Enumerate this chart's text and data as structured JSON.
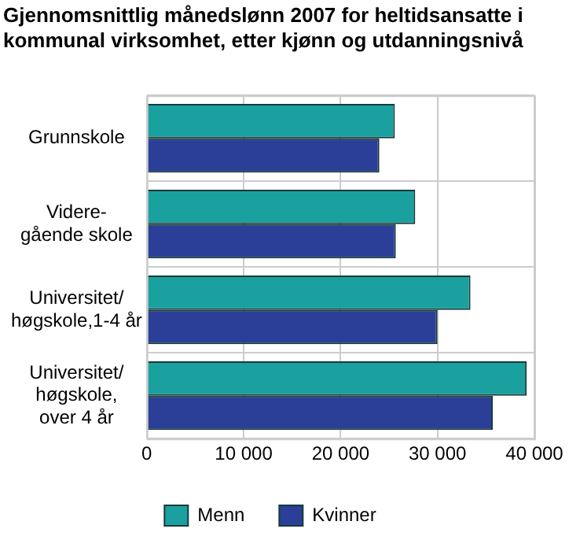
{
  "chart_data": {
    "type": "bar",
    "orientation": "horizontal",
    "title": "Gjennomsnittlig månedslønn 2007 for heltidsansatte i kommunal virksomhet, etter kjønn og utdanningsnivå",
    "categories": [
      "Grunnskole",
      "Videre-\ngående skole",
      "Universitet/\nhøgskole,1-4 år",
      "Universitet/\nhøgskole,\nover 4 år"
    ],
    "series": [
      {
        "name": "Menn",
        "color": "#1aa09e",
        "values": [
          25600,
          27700,
          33400,
          39200
        ]
      },
      {
        "name": "Kvinner",
        "color": "#2b3f98",
        "values": [
          24000,
          25700,
          30000,
          35700
        ]
      }
    ],
    "xlim": [
      0,
      40000
    ],
    "xticks": [
      {
        "value": 0,
        "label": "0"
      },
      {
        "value": 10000,
        "label": "10 000"
      },
      {
        "value": 20000,
        "label": "20 000"
      },
      {
        "value": 30000,
        "label": "30 000"
      },
      {
        "value": 40000,
        "label": "40 000"
      }
    ],
    "grid": true,
    "legend": "bottom"
  }
}
